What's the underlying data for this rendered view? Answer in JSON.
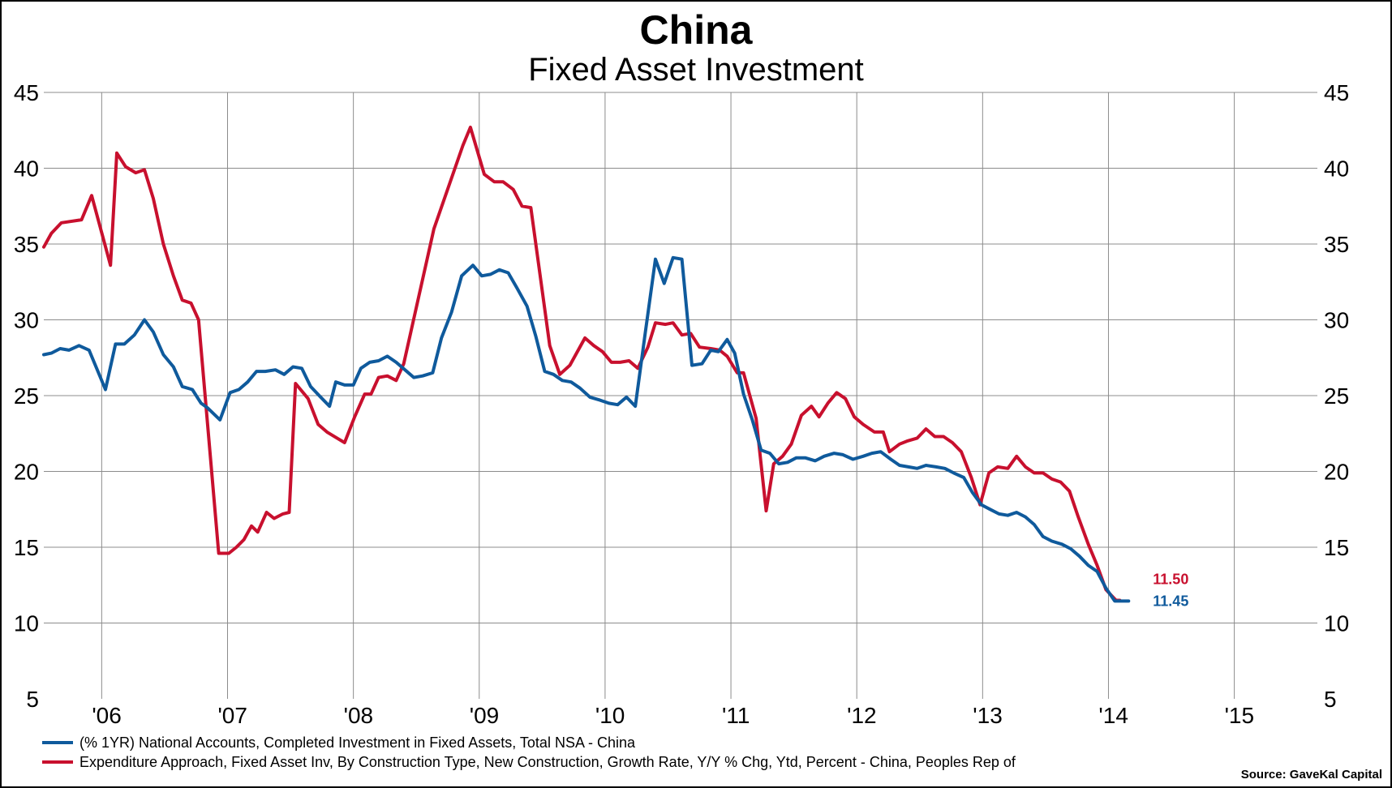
{
  "chart_data": {
    "type": "line",
    "title": "China",
    "subtitle": "Fixed Asset Investment",
    "xlabel": "",
    "ylabel": "",
    "ylim": [
      5,
      45
    ],
    "yticks": [
      "45",
      "40",
      "35",
      "30",
      "25",
      "20",
      "15",
      "10",
      "5"
    ],
    "xlim": [
      2005.0,
      2015.12
    ],
    "xticks": [
      {
        "label": "'06",
        "x": 2005.5
      },
      {
        "label": "'07",
        "x": 2006.5
      },
      {
        "label": "'08",
        "x": 2007.5
      },
      {
        "label": "'09",
        "x": 2008.5
      },
      {
        "label": "'10",
        "x": 2009.5
      },
      {
        "label": "'11",
        "x": 2010.5
      },
      {
        "label": "'12",
        "x": 2011.5
      },
      {
        "label": "'13",
        "x": 2012.5
      },
      {
        "label": "'14",
        "x": 2013.5
      },
      {
        "label": "'15",
        "x": 2014.5
      }
    ],
    "vgrid_x": [
      2005.46,
      2006.46,
      2007.46,
      2008.46,
      2009.46,
      2010.46,
      2011.46,
      2012.46,
      2013.46,
      2014.46
    ],
    "grid": true,
    "legend_position": "bottom-left",
    "series": [
      {
        "name": "Expenditure Approach, Fixed Asset Inv, By Construction Type, New Construction, Growth Rate, Y/Y % Chg, Ytd, Percent - China, Peoples Rep of",
        "color": "#c8102e",
        "end_label": "11.50",
        "points": [
          [
            2005.0,
            34.8
          ],
          [
            2005.06,
            35.7
          ],
          [
            2005.14,
            36.4
          ],
          [
            2005.3,
            36.6
          ],
          [
            2005.38,
            38.2
          ],
          [
            2005.53,
            33.6
          ],
          [
            2005.58,
            41.0
          ],
          [
            2005.65,
            40.1
          ],
          [
            2005.73,
            39.7
          ],
          [
            2005.8,
            39.9
          ],
          [
            2005.87,
            38.0
          ],
          [
            2005.95,
            35.0
          ],
          [
            2006.03,
            32.9
          ],
          [
            2006.1,
            31.3
          ],
          [
            2006.17,
            31.1
          ],
          [
            2006.23,
            30.0
          ],
          [
            2006.39,
            14.6
          ],
          [
            2006.47,
            14.6
          ],
          [
            2006.53,
            15.0
          ],
          [
            2006.59,
            15.5
          ],
          [
            2006.65,
            16.4
          ],
          [
            2006.7,
            16.0
          ],
          [
            2006.77,
            17.3
          ],
          [
            2006.83,
            16.9
          ],
          [
            2006.9,
            17.2
          ],
          [
            2006.95,
            17.3
          ],
          [
            2007.0,
            25.8
          ],
          [
            2007.1,
            24.8
          ],
          [
            2007.18,
            23.1
          ],
          [
            2007.25,
            22.6
          ],
          [
            2007.33,
            22.2
          ],
          [
            2007.39,
            21.9
          ],
          [
            2007.47,
            23.6
          ],
          [
            2007.55,
            25.1
          ],
          [
            2007.6,
            25.1
          ],
          [
            2007.66,
            26.2
          ],
          [
            2007.73,
            26.3
          ],
          [
            2007.8,
            26.0
          ],
          [
            2007.86,
            27.1
          ],
          [
            2008.1,
            36.0
          ],
          [
            2008.33,
            41.5
          ],
          [
            2008.39,
            42.7
          ],
          [
            2008.5,
            39.6
          ],
          [
            2008.58,
            39.1
          ],
          [
            2008.65,
            39.1
          ],
          [
            2008.73,
            38.6
          ],
          [
            2008.8,
            37.5
          ],
          [
            2008.87,
            37.4
          ],
          [
            2009.02,
            28.3
          ],
          [
            2009.1,
            26.4
          ],
          [
            2009.18,
            27.0
          ],
          [
            2009.3,
            28.8
          ],
          [
            2009.37,
            28.3
          ],
          [
            2009.44,
            27.9
          ],
          [
            2009.51,
            27.2
          ],
          [
            2009.58,
            27.2
          ],
          [
            2009.65,
            27.3
          ],
          [
            2009.72,
            26.8
          ],
          [
            2009.8,
            28.2
          ],
          [
            2009.86,
            29.8
          ],
          [
            2009.94,
            29.7
          ],
          [
            2010.0,
            29.8
          ],
          [
            2010.07,
            29.0
          ],
          [
            2010.14,
            29.1
          ],
          [
            2010.21,
            28.2
          ],
          [
            2010.3,
            28.1
          ],
          [
            2010.37,
            28.0
          ],
          [
            2010.43,
            27.6
          ],
          [
            2010.51,
            26.5
          ],
          [
            2010.56,
            26.5
          ],
          [
            2010.66,
            23.5
          ],
          [
            2010.74,
            17.4
          ],
          [
            2010.8,
            20.5
          ],
          [
            2010.87,
            21.0
          ],
          [
            2010.94,
            21.8
          ],
          [
            2011.02,
            23.7
          ],
          [
            2011.1,
            24.3
          ],
          [
            2011.16,
            23.6
          ],
          [
            2011.23,
            24.5
          ],
          [
            2011.3,
            25.2
          ],
          [
            2011.37,
            24.8
          ],
          [
            2011.44,
            23.6
          ],
          [
            2011.51,
            23.1
          ],
          [
            2011.6,
            22.6
          ],
          [
            2011.67,
            22.6
          ],
          [
            2011.72,
            21.3
          ],
          [
            2011.8,
            21.8
          ],
          [
            2011.86,
            22.0
          ],
          [
            2011.94,
            22.2
          ],
          [
            2012.01,
            22.8
          ],
          [
            2012.08,
            22.3
          ],
          [
            2012.15,
            22.3
          ],
          [
            2012.22,
            21.9
          ],
          [
            2012.29,
            21.3
          ],
          [
            2012.37,
            19.6
          ],
          [
            2012.44,
            17.8
          ],
          [
            2012.51,
            19.9
          ],
          [
            2012.58,
            20.3
          ],
          [
            2012.66,
            20.2
          ],
          [
            2012.73,
            21.0
          ],
          [
            2012.8,
            20.3
          ],
          [
            2012.87,
            19.9
          ],
          [
            2012.94,
            19.9
          ],
          [
            2013.01,
            19.5
          ],
          [
            2013.08,
            19.3
          ],
          [
            2013.15,
            18.7
          ],
          [
            2013.22,
            17.0
          ],
          [
            2013.3,
            15.2
          ],
          [
            2013.37,
            13.8
          ],
          [
            2013.44,
            12.2
          ],
          [
            2013.52,
            11.5
          ],
          [
            2013.55,
            11.5
          ]
        ]
      },
      {
        "name": "(% 1YR) National Accounts, Completed Investment in Fixed Assets, Total NSA - China",
        "color": "#0f5a9c",
        "end_label": "11.45",
        "points": [
          [
            2005.0,
            27.7
          ],
          [
            2005.06,
            27.8
          ],
          [
            2005.13,
            28.1
          ],
          [
            2005.2,
            28.0
          ],
          [
            2005.28,
            28.3
          ],
          [
            2005.36,
            28.0
          ],
          [
            2005.49,
            25.4
          ],
          [
            2005.57,
            28.4
          ],
          [
            2005.64,
            28.4
          ],
          [
            2005.72,
            29.0
          ],
          [
            2005.8,
            30.0
          ],
          [
            2005.87,
            29.2
          ],
          [
            2005.95,
            27.7
          ],
          [
            2006.03,
            26.9
          ],
          [
            2006.1,
            25.6
          ],
          [
            2006.18,
            25.4
          ],
          [
            2006.25,
            24.5
          ],
          [
            2006.3,
            24.2
          ],
          [
            2006.4,
            23.4
          ],
          [
            2006.48,
            25.2
          ],
          [
            2006.55,
            25.4
          ],
          [
            2006.62,
            25.9
          ],
          [
            2006.69,
            26.6
          ],
          [
            2006.76,
            26.6
          ],
          [
            2006.84,
            26.7
          ],
          [
            2006.91,
            26.4
          ],
          [
            2006.98,
            26.9
          ],
          [
            2007.05,
            26.8
          ],
          [
            2007.12,
            25.6
          ],
          [
            2007.2,
            24.9
          ],
          [
            2007.27,
            24.3
          ],
          [
            2007.32,
            25.9
          ],
          [
            2007.39,
            25.7
          ],
          [
            2007.46,
            25.7
          ],
          [
            2007.52,
            26.8
          ],
          [
            2007.59,
            27.2
          ],
          [
            2007.66,
            27.3
          ],
          [
            2007.73,
            27.6
          ],
          [
            2007.8,
            27.2
          ],
          [
            2007.87,
            26.7
          ],
          [
            2007.94,
            26.2
          ],
          [
            2008.01,
            26.3
          ],
          [
            2008.09,
            26.5
          ],
          [
            2008.16,
            28.8
          ],
          [
            2008.24,
            30.5
          ],
          [
            2008.32,
            32.9
          ],
          [
            2008.41,
            33.6
          ],
          [
            2008.48,
            32.9
          ],
          [
            2008.55,
            33.0
          ],
          [
            2008.62,
            33.3
          ],
          [
            2008.69,
            33.1
          ],
          [
            2008.76,
            32.1
          ],
          [
            2008.84,
            30.9
          ],
          [
            2008.91,
            28.9
          ],
          [
            2008.98,
            26.6
          ],
          [
            2009.05,
            26.4
          ],
          [
            2009.12,
            26.0
          ],
          [
            2009.19,
            25.9
          ],
          [
            2009.26,
            25.5
          ],
          [
            2009.34,
            24.9
          ],
          [
            2009.42,
            24.7
          ],
          [
            2009.49,
            24.5
          ],
          [
            2009.56,
            24.4
          ],
          [
            2009.63,
            24.9
          ],
          [
            2009.7,
            24.3
          ],
          [
            2009.78,
            29.2
          ],
          [
            2009.86,
            34.0
          ],
          [
            2009.93,
            32.4
          ],
          [
            2010.0,
            34.1
          ],
          [
            2010.07,
            34.0
          ],
          [
            2010.15,
            27.0
          ],
          [
            2010.23,
            27.1
          ],
          [
            2010.3,
            28.0
          ],
          [
            2010.36,
            27.9
          ],
          [
            2010.43,
            28.7
          ],
          [
            2010.49,
            27.8
          ],
          [
            2010.56,
            25.1
          ],
          [
            2010.63,
            23.4
          ],
          [
            2010.7,
            21.4
          ],
          [
            2010.77,
            21.2
          ],
          [
            2010.84,
            20.5
          ],
          [
            2010.91,
            20.6
          ],
          [
            2010.98,
            20.9
          ],
          [
            2011.05,
            20.9
          ],
          [
            2011.13,
            20.7
          ],
          [
            2011.2,
            21.0
          ],
          [
            2011.28,
            21.2
          ],
          [
            2011.35,
            21.1
          ],
          [
            2011.43,
            20.8
          ],
          [
            2011.51,
            21.0
          ],
          [
            2011.58,
            21.2
          ],
          [
            2011.65,
            21.3
          ],
          [
            2011.73,
            20.8
          ],
          [
            2011.8,
            20.4
          ],
          [
            2011.87,
            20.3
          ],
          [
            2011.94,
            20.2
          ],
          [
            2012.01,
            20.4
          ],
          [
            2012.09,
            20.3
          ],
          [
            2012.16,
            20.2
          ],
          [
            2012.23,
            19.9
          ],
          [
            2012.31,
            19.6
          ],
          [
            2012.38,
            18.6
          ],
          [
            2012.45,
            17.8
          ],
          [
            2012.52,
            17.5
          ],
          [
            2012.59,
            17.2
          ],
          [
            2012.66,
            17.1
          ],
          [
            2012.73,
            17.3
          ],
          [
            2012.8,
            17.0
          ],
          [
            2012.87,
            16.5
          ],
          [
            2012.94,
            15.7
          ],
          [
            2013.01,
            15.4
          ],
          [
            2013.09,
            15.2
          ],
          [
            2013.16,
            14.9
          ],
          [
            2013.23,
            14.4
          ],
          [
            2013.3,
            13.8
          ],
          [
            2013.37,
            13.4
          ],
          [
            2013.44,
            12.3
          ],
          [
            2013.51,
            11.45
          ],
          [
            2013.56,
            11.45
          ],
          [
            2013.62,
            11.45
          ]
        ]
      }
    ],
    "source": "Source: GaveKal Capital"
  }
}
